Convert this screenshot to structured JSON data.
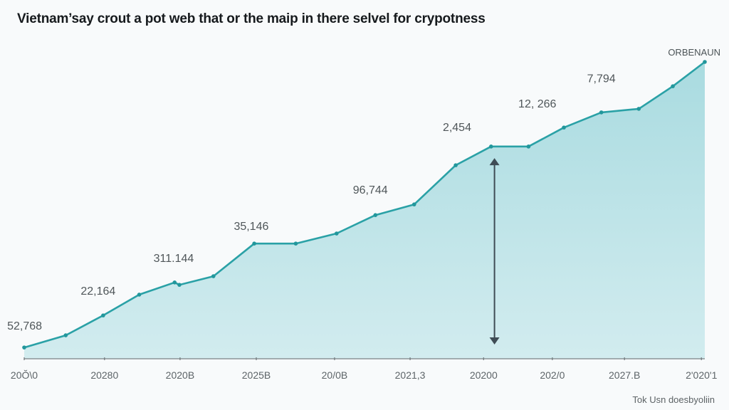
{
  "chart_data": {
    "type": "area",
    "title": "Vietnam’say crout a pot web that or the maip in there selvel for crypotness",
    "series_label": "ORBENAUN",
    "footer": "Tok Usn doesbyoliin",
    "xlabel": "",
    "ylabel": "",
    "x_range": [
      0,
      100
    ],
    "ylim": [
      0,
      100
    ],
    "grid": false,
    "x_tick_labels": [
      {
        "x": 0,
        "label": "20Ŏ\\0"
      },
      {
        "x": 11.8,
        "label": "20280"
      },
      {
        "x": 22.9,
        "label": "2020B"
      },
      {
        "x": 34.1,
        "label": "2025B"
      },
      {
        "x": 45.6,
        "label": "20/0B"
      },
      {
        "x": 56.7,
        "label": "2021,3"
      },
      {
        "x": 67.5,
        "label": "20200"
      },
      {
        "x": 77.6,
        "label": "202/0"
      },
      {
        "x": 88.2,
        "label": "2027.B"
      },
      {
        "x": 99.5,
        "label": "2'020'1"
      }
    ],
    "points": [
      {
        "x": 0,
        "y": 3.8
      },
      {
        "x": 6.1,
        "y": 7.9
      },
      {
        "x": 11.6,
        "y": 14.6
      },
      {
        "x": 16.9,
        "y": 21.6
      },
      {
        "x": 22.1,
        "y": 25.7
      },
      {
        "x": 22.8,
        "y": 24.9
      },
      {
        "x": 27.8,
        "y": 27.8
      },
      {
        "x": 33.8,
        "y": 38.8
      },
      {
        "x": 39.9,
        "y": 38.8
      },
      {
        "x": 45.9,
        "y": 42.2
      },
      {
        "x": 51.6,
        "y": 48.4
      },
      {
        "x": 57.3,
        "y": 52.0
      },
      {
        "x": 63.4,
        "y": 65.2
      },
      {
        "x": 68.6,
        "y": 71.5
      },
      {
        "x": 74.1,
        "y": 71.5
      },
      {
        "x": 79.3,
        "y": 77.9
      },
      {
        "x": 84.8,
        "y": 83.0
      },
      {
        "x": 90.3,
        "y": 84.2
      },
      {
        "x": 95.3,
        "y": 91.8
      },
      {
        "x": 100,
        "y": 100
      }
    ],
    "data_labels": [
      {
        "x": -2.5,
        "y": 9.8,
        "text": "52,768"
      },
      {
        "x": 8.3,
        "y": 21.6,
        "text": "22,164"
      },
      {
        "x": 19.0,
        "y": 32.6,
        "text": "311.144"
      },
      {
        "x": 30.8,
        "y": 43.4,
        "text": "35,146"
      },
      {
        "x": 48.3,
        "y": 55.6,
        "text": "96,744"
      },
      {
        "x": 61.5,
        "y": 76.7,
        "text": "2,454"
      },
      {
        "x": 72.6,
        "y": 84.7,
        "text": "12, 266"
      },
      {
        "x": 82.7,
        "y": 93.2,
        "text": "7,794"
      }
    ],
    "annotation_arrow": {
      "x": 69.1,
      "y_from": 4.8,
      "y_to": 67.6
    }
  }
}
